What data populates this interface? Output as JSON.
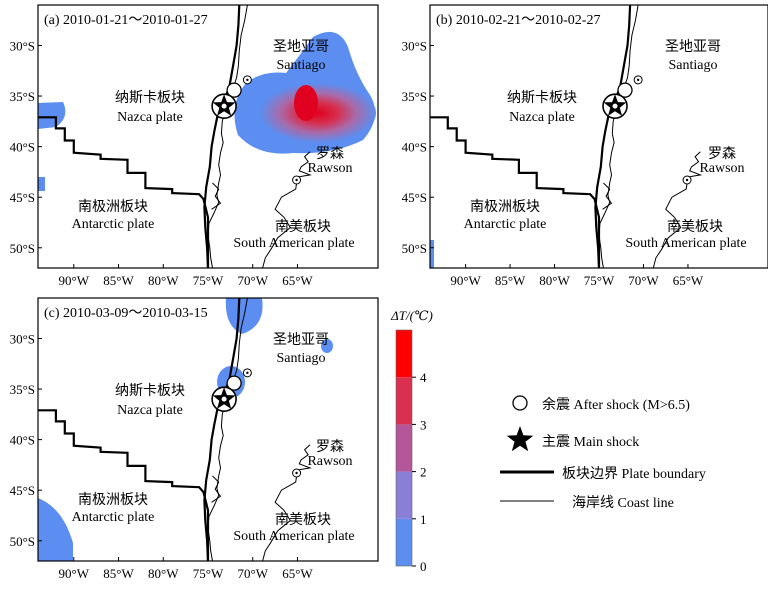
{
  "panels": [
    {
      "id": "a",
      "label": "(a) 2010-01-21～2010-01-27",
      "anomaly": "strong",
      "places": {
        "nazca_cn": "纳斯卡板块",
        "nazca_en": "Nazca plate",
        "antarctic_cn": "南极洲板块",
        "antarctic_en": "Antarctic plate",
        "southam_cn": "南美板块",
        "southam_en": "South American plate",
        "santiago_cn": "圣地亚哥",
        "santiago_en": "Santiago",
        "rawson_cn": "罗森",
        "rawson_en": "Rawson"
      }
    },
    {
      "id": "b",
      "label": "(b) 2010-02-21～2010-02-27",
      "anomaly": "none",
      "places": {
        "nazca_cn": "纳斯卡板块",
        "nazca_en": "Nazca plate",
        "antarctic_cn": "南极洲板块",
        "antarctic_en": "Antarctic plate",
        "southam_cn": "南美板块",
        "southam_en": "South American plate",
        "santiago_cn": "圣地亚哥",
        "santiago_en": "Santiago",
        "rawson_cn": "罗森",
        "rawson_en": "Rawson"
      }
    },
    {
      "id": "c",
      "label": "(c) 2010-03-09～2010-03-15",
      "anomaly": "weak",
      "places": {
        "nazca_cn": "纳斯卡板块",
        "nazca_en": "Nazca plate",
        "antarctic_cn": "南极洲板块",
        "antarctic_en": "Antarctic plate",
        "southam_cn": "南美板块",
        "southam_en": "South American plate",
        "santiago_cn": "圣地亚哥",
        "santiago_en": "Santiago",
        "rawson_cn": "罗森",
        "rawson_en": "Rawson"
      }
    }
  ],
  "axes": {
    "lat_labels": [
      "30°S",
      "35°S",
      "40°S",
      "45°S",
      "50°S"
    ],
    "lon_labels": [
      "90°W",
      "85°W",
      "80°W",
      "75°W",
      "70°W",
      "65°W"
    ]
  },
  "colorbar": {
    "title": "ΔT/(℃)",
    "ticks": [
      "0",
      "1",
      "2",
      "3",
      "4"
    ],
    "colors": [
      "#5b8ef0",
      "#8a7fd6",
      "#b4569a",
      "#d9304f",
      "#ff0000"
    ]
  },
  "legend": {
    "aftershock": "余震 After shock (M>6.5)",
    "mainshock": "主震 Main shock",
    "boundary": "板块边界 Plate boundary",
    "coast": "海岸线 Coast line"
  }
}
